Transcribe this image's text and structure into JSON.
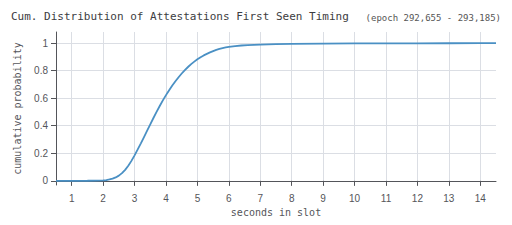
{
  "chart_data": {
    "type": "line",
    "title": "Cum. Distribution of Attestations First Seen Timing",
    "subtitle": "(epoch 292,655 - 293,185)",
    "xlabel": "seconds in slot",
    "ylabel": "cumulative probability",
    "color": "#4a90c4",
    "grid": true,
    "xlim": [
      0.5,
      14.5
    ],
    "ylim": [
      -0.03,
      1.08
    ],
    "xticks": [
      1,
      2,
      3,
      4,
      5,
      6,
      7,
      8,
      9,
      10,
      11,
      12,
      13,
      14
    ],
    "yticks": [
      0,
      0.2,
      0.4,
      0.6,
      0.8,
      1
    ],
    "x": [
      0.5,
      1.0,
      1.5,
      1.8,
      2.0,
      2.1,
      2.2,
      2.3,
      2.4,
      2.5,
      2.6,
      2.7,
      2.8,
      2.9,
      3.0,
      3.1,
      3.2,
      3.3,
      3.4,
      3.5,
      3.6,
      3.7,
      3.8,
      3.9,
      4.0,
      4.1,
      4.2,
      4.3,
      4.4,
      4.5,
      4.6,
      4.7,
      4.8,
      4.9,
      5.0,
      5.1,
      5.2,
      5.3,
      5.4,
      5.5,
      5.6,
      5.7,
      5.8,
      5.9,
      6.0,
      6.2,
      6.4,
      6.6,
      6.8,
      7.0,
      7.5,
      8.0,
      9.0,
      10.0,
      11.0,
      12.0,
      13.0,
      14.0,
      14.5
    ],
    "values": [
      0.0,
      0.0,
      0.001,
      0.002,
      0.004,
      0.006,
      0.01,
      0.016,
      0.025,
      0.038,
      0.056,
      0.08,
      0.11,
      0.145,
      0.185,
      0.228,
      0.272,
      0.318,
      0.364,
      0.41,
      0.456,
      0.5,
      0.543,
      0.584,
      0.622,
      0.658,
      0.692,
      0.723,
      0.752,
      0.779,
      0.804,
      0.826,
      0.847,
      0.865,
      0.882,
      0.897,
      0.91,
      0.921,
      0.932,
      0.941,
      0.95,
      0.957,
      0.963,
      0.968,
      0.972,
      0.978,
      0.982,
      0.985,
      0.987,
      0.989,
      0.992,
      0.994,
      0.996,
      0.997,
      0.9975,
      0.998,
      0.9985,
      0.999,
      0.999
    ]
  }
}
